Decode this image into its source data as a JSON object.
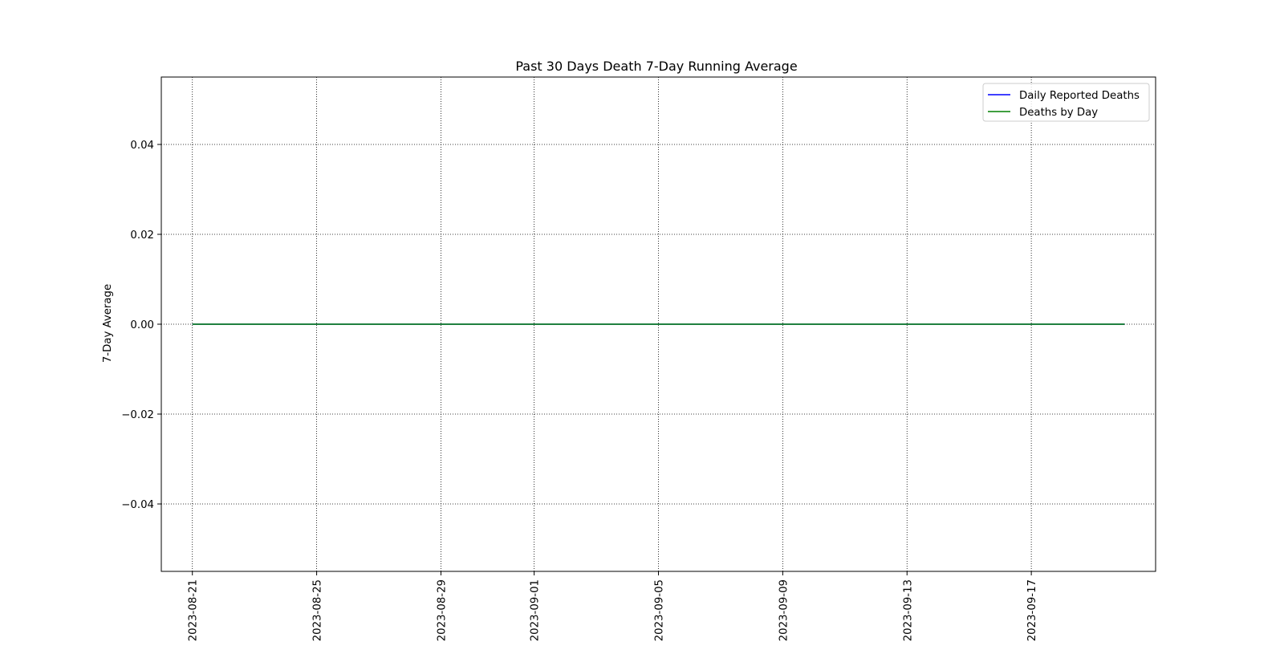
{
  "chart_data": {
    "type": "line",
    "title": "Past 30 Days Death 7-Day Running Average",
    "xlabel": "",
    "ylabel": "7-Day Average",
    "x_type": "date",
    "xlim": [
      "2023-08-20",
      "2023-09-21"
    ],
    "ylim": [
      -0.055,
      0.055
    ],
    "x_ticks": [
      "2023-08-21",
      "2023-08-25",
      "2023-08-29",
      "2023-09-01",
      "2023-09-05",
      "2023-09-09",
      "2023-09-13",
      "2023-09-17"
    ],
    "y_ticks": [
      0.04,
      0.02,
      0.0,
      -0.02,
      -0.04
    ],
    "y_tick_labels": [
      "0.04",
      "0.02",
      "0.00",
      "−0.02",
      "−0.04"
    ],
    "grid": true,
    "grid_style": "dotted",
    "legend_position": "top-right",
    "series": [
      {
        "name": "Daily Reported Deaths",
        "color": "#0000ff",
        "x": [
          "2023-08-21",
          "2023-09-20"
        ],
        "y": [
          0,
          0
        ]
      },
      {
        "name": "Deaths by Day",
        "color": "#008000",
        "x": [
          "2023-08-21",
          "2023-09-20"
        ],
        "y": [
          0,
          0
        ]
      }
    ]
  }
}
